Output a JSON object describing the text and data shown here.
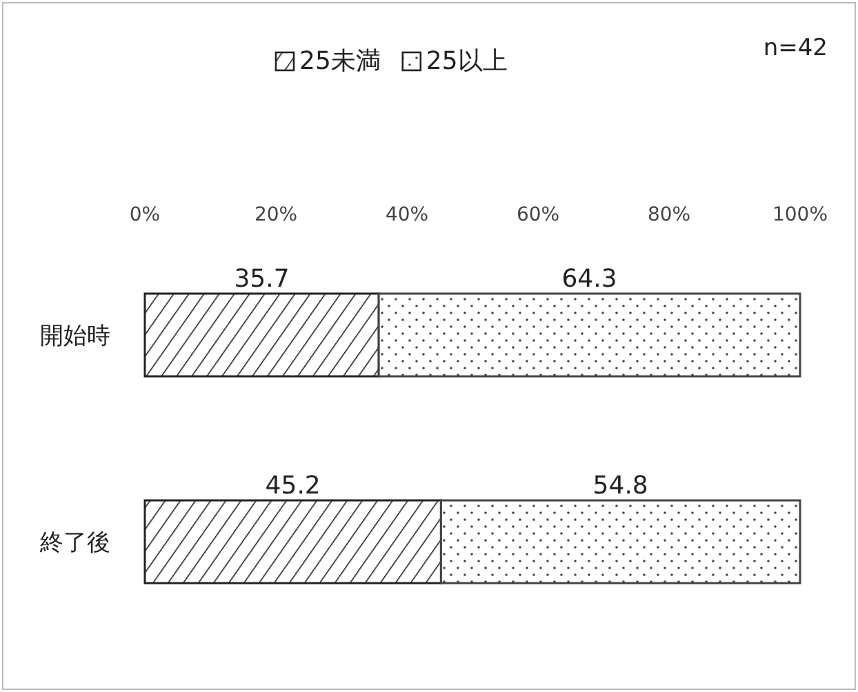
{
  "chart_data": {
    "type": "bar",
    "orientation": "horizontal",
    "stacked": true,
    "categories": [
      "開始時",
      "終了後"
    ],
    "series": [
      {
        "name": "25未満",
        "color": "#222222",
        "values": [
          35.7,
          45.2
        ]
      },
      {
        "name": "25以上",
        "color": "#444444",
        "values": [
          64.3,
          54.8
        ]
      }
    ],
    "xlim": [
      0,
      100
    ],
    "xticks": [
      {
        "value": 0,
        "label": "0%"
      },
      {
        "value": 20,
        "label": "20%"
      },
      {
        "value": 40,
        "label": "40%"
      },
      {
        "value": 60,
        "label": "60%"
      },
      {
        "value": 80,
        "label": "80%"
      },
      {
        "value": 100,
        "label": "100%"
      }
    ],
    "data_labels": true,
    "legend": "top",
    "grid": false,
    "annotations": [
      "n=42"
    ]
  }
}
